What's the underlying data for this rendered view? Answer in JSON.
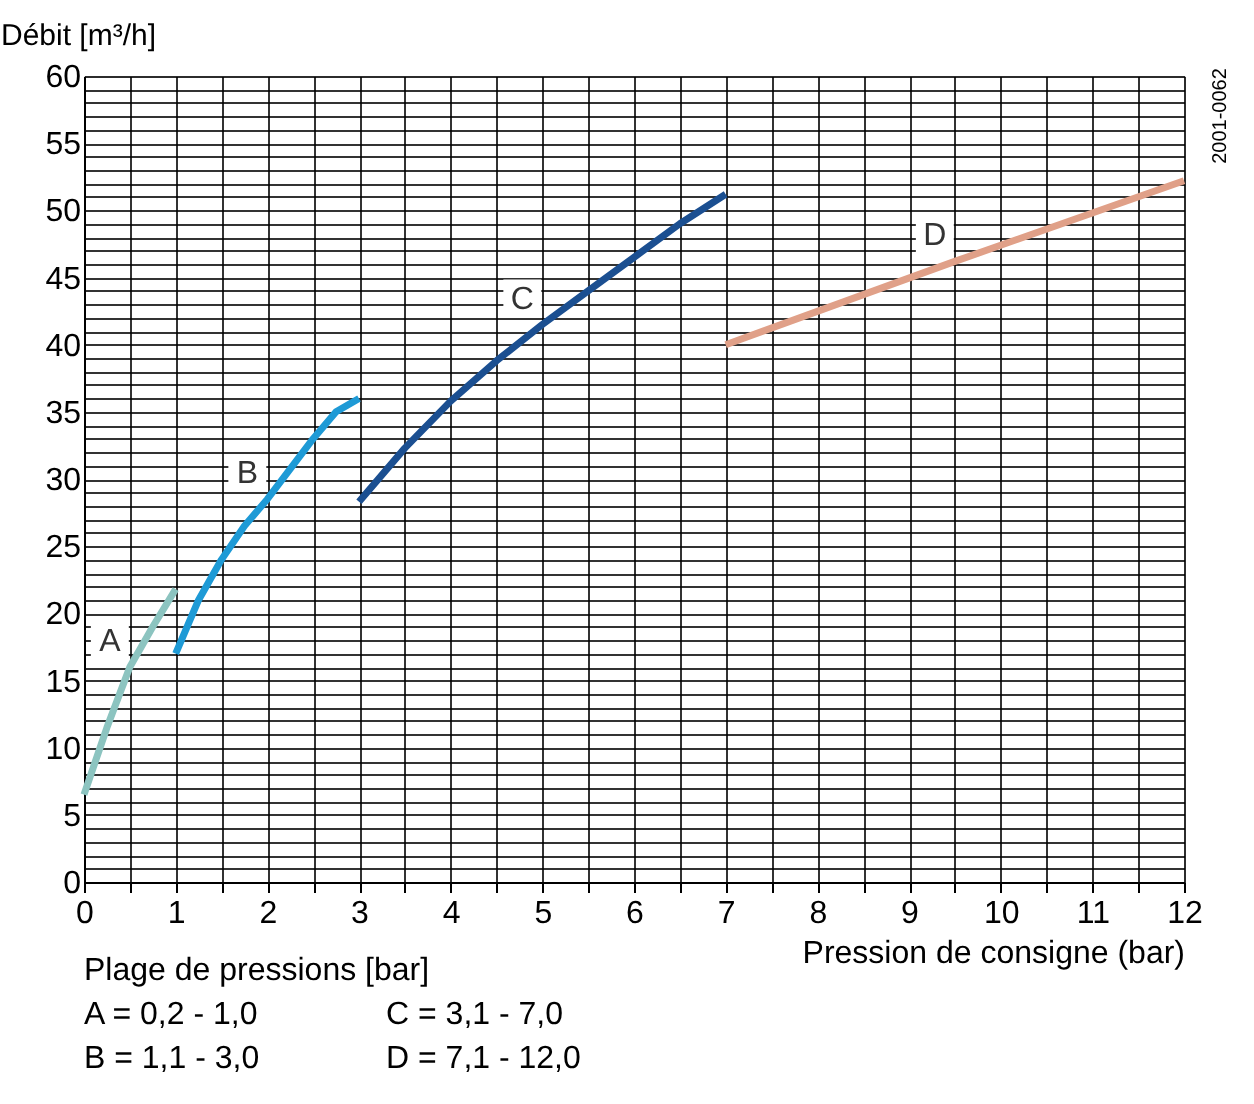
{
  "chart_data": {
    "type": "line",
    "xlabel": "Pression de consigne (bar)",
    "ylabel": "Débit [m³/h]",
    "xlim": [
      0,
      12
    ],
    "ylim": [
      0,
      60
    ],
    "xticks": [
      0,
      {
        "value": 0.5,
        "label": null
      },
      1,
      {
        "value": 1.5,
        "label": null
      },
      2,
      {
        "value": 2.5,
        "label": null
      },
      3,
      {
        "value": 3.5,
        "label": null
      },
      4,
      {
        "value": 4.5,
        "label": null
      },
      5,
      {
        "value": 5.5,
        "label": null
      },
      6,
      {
        "value": 6.5,
        "label": null
      },
      7,
      {
        "value": 7.5,
        "label": null
      },
      8,
      {
        "value": 8.5,
        "label": null
      },
      9,
      {
        "value": 9.5,
        "label": null
      },
      10,
      {
        "value": 10.5,
        "label": null
      },
      11,
      {
        "value": 11.5,
        "label": null
      },
      12
    ],
    "yticks": [
      0,
      {
        "value": 1,
        "label": null
      },
      {
        "value": 2,
        "label": null
      },
      {
        "value": 3,
        "label": null
      },
      {
        "value": 4,
        "label": null
      },
      5,
      {
        "value": 6,
        "label": null
      },
      {
        "value": 7,
        "label": null
      },
      {
        "value": 8,
        "label": null
      },
      {
        "value": 9,
        "label": null
      },
      10,
      {
        "value": 11,
        "label": null
      },
      {
        "value": 12,
        "label": null
      },
      {
        "value": 13,
        "label": null
      },
      {
        "value": 14,
        "label": null
      },
      15,
      {
        "value": 16,
        "label": null
      },
      {
        "value": 17,
        "label": null
      },
      {
        "value": 18,
        "label": null
      },
      {
        "value": 19,
        "label": null
      },
      20,
      {
        "value": 21,
        "label": null
      },
      {
        "value": 22,
        "label": null
      },
      {
        "value": 23,
        "label": null
      },
      {
        "value": 24,
        "label": null
      },
      25,
      {
        "value": 26,
        "label": null
      },
      {
        "value": 27,
        "label": null
      },
      {
        "value": 28,
        "label": null
      },
      {
        "value": 29,
        "label": null
      },
      30,
      {
        "value": 31,
        "label": null
      },
      {
        "value": 32,
        "label": null
      },
      {
        "value": 33,
        "label": null
      },
      {
        "value": 34,
        "label": null
      },
      35,
      {
        "value": 36,
        "label": null
      },
      {
        "value": 37,
        "label": null
      },
      {
        "value": 38,
        "label": null
      },
      {
        "value": 39,
        "label": null
      },
      40,
      {
        "value": 41,
        "label": null
      },
      {
        "value": 42,
        "label": null
      },
      {
        "value": 43,
        "label": null
      },
      {
        "value": 44,
        "label": null
      },
      45,
      {
        "value": 46,
        "label": null
      },
      {
        "value": 47,
        "label": null
      },
      {
        "value": 48,
        "label": null
      },
      {
        "value": 49,
        "label": null
      },
      50,
      {
        "value": 51,
        "label": null
      },
      {
        "value": 52,
        "label": null
      },
      {
        "value": 53,
        "label": null
      },
      {
        "value": 54,
        "label": null
      },
      55,
      {
        "value": 56,
        "label": null
      },
      {
        "value": 57,
        "label": null
      },
      {
        "value": 58,
        "label": null
      },
      {
        "value": 59,
        "label": null
      },
      60
    ],
    "grid": true,
    "line_style": "solid",
    "series": [
      {
        "name": "A",
        "color": "#8cc4c0",
        "x": [
          0,
          0.25,
          0.5,
          0.75,
          1.0
        ],
        "values": [
          6.5,
          11.5,
          16,
          19,
          21.8
        ]
      },
      {
        "name": "B",
        "color": "#1e9ad6",
        "x": [
          1.0,
          1.25,
          1.5,
          1.75,
          2.0,
          2.5,
          2.75,
          3.0
        ],
        "values": [
          17,
          21,
          24,
          26.5,
          28.5,
          33,
          35,
          36
        ]
      },
      {
        "name": "C",
        "color": "#1b4f91",
        "x": [
          3.0,
          3.5,
          4.0,
          4.5,
          5.0,
          5.5,
          6.0,
          6.5,
          7.0
        ],
        "values": [
          28.3,
          32.3,
          35.8,
          38.8,
          41.5,
          44,
          46.5,
          49,
          51.2
        ]
      },
      {
        "name": "D",
        "color": "#e0a088",
        "x": [
          7.0,
          9.5,
          12.0
        ],
        "values": [
          40,
          46.2,
          52.2
        ]
      }
    ],
    "annotations": [
      "Plage de pressions [bar]",
      "A = 0,2 - 1,0",
      "C = 3,1 - 7,0",
      "B = 1,1 - 3,0",
      "D = 7,1 - 12,0",
      "2001-0062"
    ]
  }
}
